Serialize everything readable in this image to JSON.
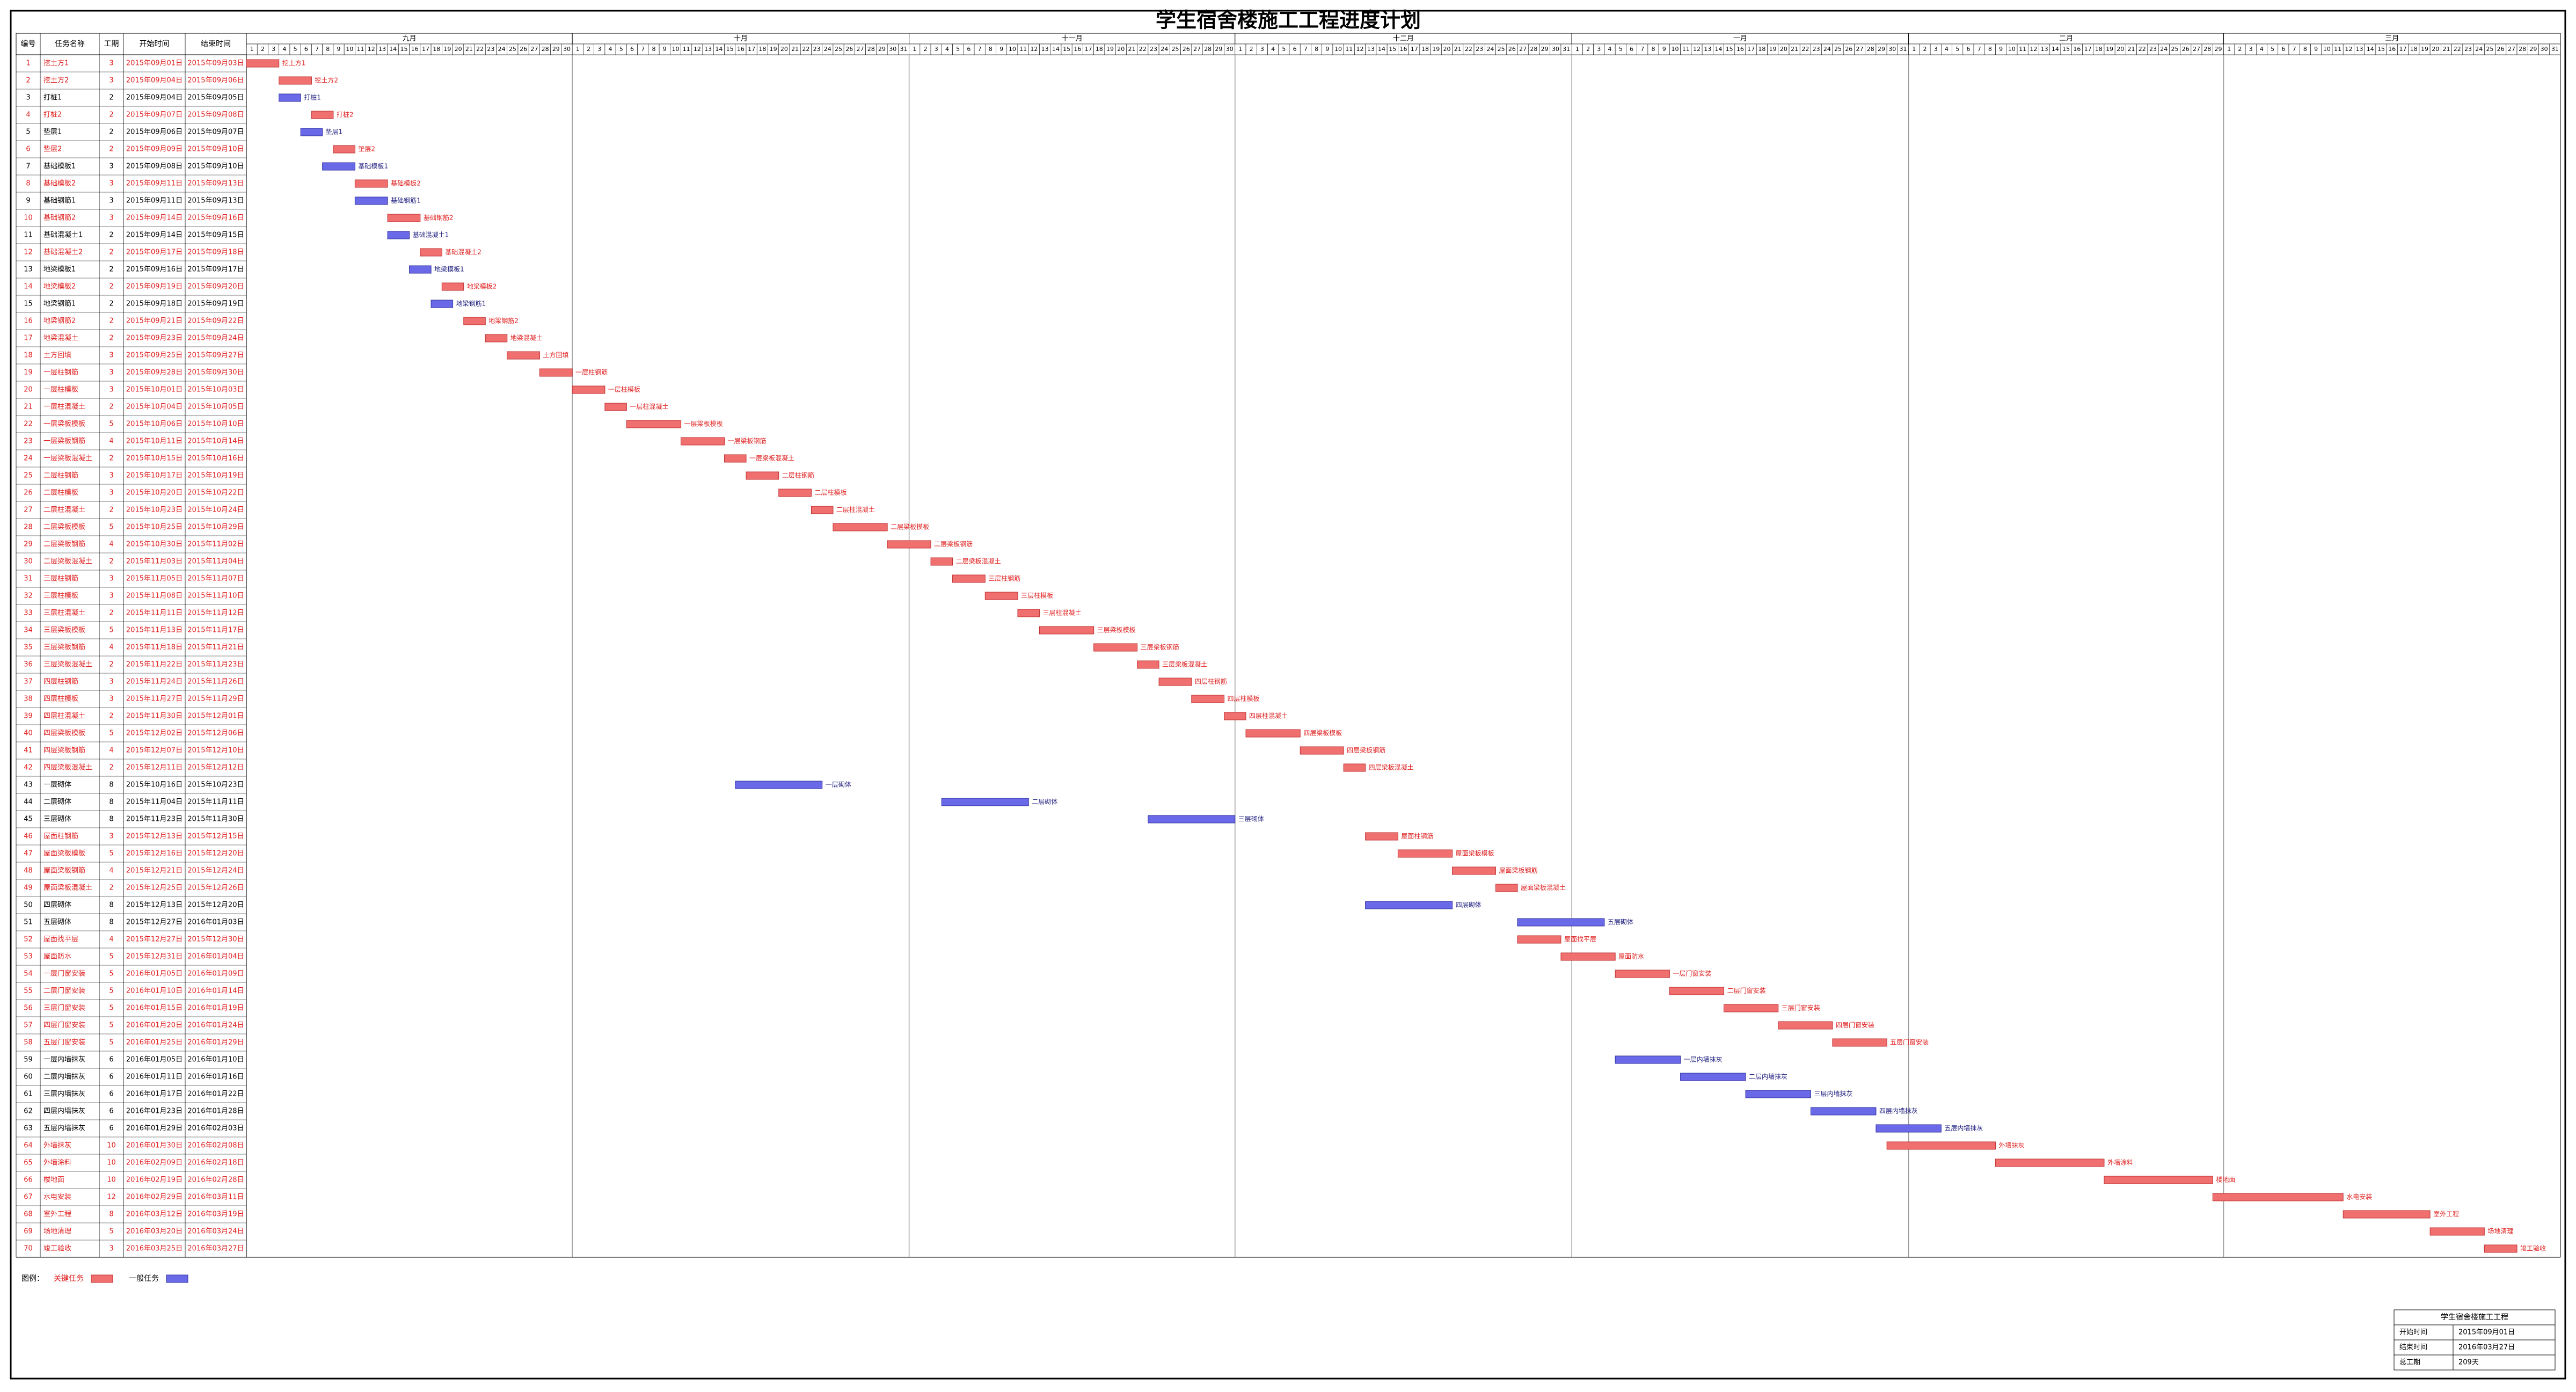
{
  "title": "学生宿舍楼施工工程进度计划",
  "table": {
    "headers": [
      "编号",
      "任务名称",
      "工期",
      "开始时间",
      "结束时间"
    ],
    "tasks": [
      [
        1,
        "挖土方1",
        3,
        "2015年09月01日",
        "2015年09月03日",
        true
      ],
      [
        2,
        "挖土方2",
        3,
        "2015年09月04日",
        "2015年09月06日",
        true
      ],
      [
        3,
        "打桩1",
        2,
        "2015年09月04日",
        "2015年09月05日",
        false
      ],
      [
        4,
        "打桩2",
        2,
        "2015年09月07日",
        "2015年09月08日",
        true
      ],
      [
        5,
        "垫层1",
        2,
        "2015年09月06日",
        "2015年09月07日",
        false
      ],
      [
        6,
        "垫层2",
        2,
        "2015年09月09日",
        "2015年09月10日",
        true
      ],
      [
        7,
        "基础模板1",
        3,
        "2015年09月08日",
        "2015年09月10日",
        false
      ],
      [
        8,
        "基础模板2",
        3,
        "2015年09月11日",
        "2015年09月13日",
        true
      ],
      [
        9,
        "基础钢筋1",
        3,
        "2015年09月11日",
        "2015年09月13日",
        false
      ],
      [
        10,
        "基础钢筋2",
        3,
        "2015年09月14日",
        "2015年09月16日",
        true
      ],
      [
        11,
        "基础混凝土1",
        2,
        "2015年09月14日",
        "2015年09月15日",
        false
      ],
      [
        12,
        "基础混凝土2",
        2,
        "2015年09月17日",
        "2015年09月18日",
        true
      ],
      [
        13,
        "地梁模板1",
        2,
        "2015年09月16日",
        "2015年09月17日",
        false
      ],
      [
        14,
        "地梁模板2",
        2,
        "2015年09月19日",
        "2015年09月20日",
        true
      ],
      [
        15,
        "地梁钢筋1",
        2,
        "2015年09月18日",
        "2015年09月19日",
        false
      ],
      [
        16,
        "地梁钢筋2",
        2,
        "2015年09月21日",
        "2015年09月22日",
        true
      ],
      [
        17,
        "地梁混凝土",
        2,
        "2015年09月23日",
        "2015年09月24日",
        true
      ],
      [
        18,
        "土方回填",
        3,
        "2015年09月25日",
        "2015年09月27日",
        true
      ],
      [
        19,
        "一层柱钢筋",
        3,
        "2015年09月28日",
        "2015年09月30日",
        true
      ],
      [
        20,
        "一层柱模板",
        3,
        "2015年10月01日",
        "2015年10月03日",
        true
      ],
      [
        21,
        "一层柱混凝土",
        2,
        "2015年10月04日",
        "2015年10月05日",
        true
      ],
      [
        22,
        "一层梁板模板",
        5,
        "2015年10月06日",
        "2015年10月10日",
        true
      ],
      [
        23,
        "一层梁板钢筋",
        4,
        "2015年10月11日",
        "2015年10月14日",
        true
      ],
      [
        24,
        "一层梁板混凝土",
        2,
        "2015年10月15日",
        "2015年10月16日",
        true
      ],
      [
        25,
        "二层柱钢筋",
        3,
        "2015年10月17日",
        "2015年10月19日",
        true
      ],
      [
        26,
        "二层柱模板",
        3,
        "2015年10月20日",
        "2015年10月22日",
        true
      ],
      [
        27,
        "二层柱混凝土",
        2,
        "2015年10月23日",
        "2015年10月24日",
        true
      ],
      [
        28,
        "二层梁板模板",
        5,
        "2015年10月25日",
        "2015年10月29日",
        true
      ],
      [
        29,
        "二层梁板钢筋",
        4,
        "2015年10月30日",
        "2015年11月02日",
        true
      ],
      [
        30,
        "二层梁板混凝土",
        2,
        "2015年11月03日",
        "2015年11月04日",
        true
      ],
      [
        31,
        "三层柱钢筋",
        3,
        "2015年11月05日",
        "2015年11月07日",
        true
      ],
      [
        32,
        "三层柱模板",
        3,
        "2015年11月08日",
        "2015年11月10日",
        true
      ],
      [
        33,
        "三层柱混凝土",
        2,
        "2015年11月11日",
        "2015年11月12日",
        true
      ],
      [
        34,
        "三层梁板模板",
        5,
        "2015年11月13日",
        "2015年11月17日",
        true
      ],
      [
        35,
        "三层梁板钢筋",
        4,
        "2015年11月18日",
        "2015年11月21日",
        true
      ],
      [
        36,
        "三层梁板混凝土",
        2,
        "2015年11月22日",
        "2015年11月23日",
        true
      ],
      [
        37,
        "四层柱钢筋",
        3,
        "2015年11月24日",
        "2015年11月26日",
        true
      ],
      [
        38,
        "四层柱模板",
        3,
        "2015年11月27日",
        "2015年11月29日",
        true
      ],
      [
        39,
        "四层柱混凝土",
        2,
        "2015年11月30日",
        "2015年12月01日",
        true
      ],
      [
        40,
        "四层梁板模板",
        5,
        "2015年12月02日",
        "2015年12月06日",
        true
      ],
      [
        41,
        "四层梁板钢筋",
        4,
        "2015年12月07日",
        "2015年12月10日",
        true
      ],
      [
        42,
        "四层梁板混凝土",
        2,
        "2015年12月11日",
        "2015年12月12日",
        true
      ],
      [
        43,
        "一层砌体",
        8,
        "2015年10月16日",
        "2015年10月23日",
        false
      ],
      [
        44,
        "二层砌体",
        8,
        "2015年11月04日",
        "2015年11月11日",
        false
      ],
      [
        45,
        "三层砌体",
        8,
        "2015年11月23日",
        "2015年11月30日",
        false
      ],
      [
        46,
        "屋面柱钢筋",
        3,
        "2015年12月13日",
        "2015年12月15日",
        true
      ],
      [
        47,
        "屋面梁板模板",
        5,
        "2015年12月16日",
        "2015年12月20日",
        true
      ],
      [
        48,
        "屋面梁板钢筋",
        4,
        "2015年12月21日",
        "2015年12月24日",
        true
      ],
      [
        49,
        "屋面梁板混凝土",
        2,
        "2015年12月25日",
        "2015年12月26日",
        true
      ],
      [
        50,
        "四层砌体",
        8,
        "2015年12月13日",
        "2015年12月20日",
        false
      ],
      [
        51,
        "五层砌体",
        8,
        "2015年12月27日",
        "2016年01月03日",
        false
      ],
      [
        52,
        "屋面找平层",
        4,
        "2015年12月27日",
        "2015年12月30日",
        true
      ],
      [
        53,
        "屋面防水",
        5,
        "2015年12月31日",
        "2016年01月04日",
        true
      ],
      [
        54,
        "一层门窗安装",
        5,
        "2016年01月05日",
        "2016年01月09日",
        true
      ],
      [
        55,
        "二层门窗安装",
        5,
        "2016年01月10日",
        "2016年01月14日",
        true
      ],
      [
        56,
        "三层门窗安装",
        5,
        "2016年01月15日",
        "2016年01月19日",
        true
      ],
      [
        57,
        "四层门窗安装",
        5,
        "2016年01月20日",
        "2016年01月24日",
        true
      ],
      [
        58,
        "五层门窗安装",
        5,
        "2016年01月25日",
        "2016年01月29日",
        true
      ],
      [
        59,
        "一层内墙抹灰",
        6,
        "2016年01月05日",
        "2016年01月10日",
        false
      ],
      [
        60,
        "二层内墙抹灰",
        6,
        "2016年01月11日",
        "2016年01月16日",
        false
      ],
      [
        61,
        "三层内墙抹灰",
        6,
        "2016年01月17日",
        "2016年01月22日",
        false
      ],
      [
        62,
        "四层内墙抹灰",
        6,
        "2016年01月23日",
        "2016年01月28日",
        false
      ],
      [
        63,
        "五层内墙抹灰",
        6,
        "2016年01月29日",
        "2016年02月03日",
        false
      ],
      [
        64,
        "外墙抹灰",
        10,
        "2016年01月30日",
        "2016年02月08日",
        true
      ],
      [
        65,
        "外墙涂料",
        10,
        "2016年02月09日",
        "2016年02月18日",
        true
      ],
      [
        66,
        "楼地面",
        10,
        "2016年02月19日",
        "2016年02月28日",
        true
      ],
      [
        67,
        "水电安装",
        12,
        "2016年02月29日",
        "2016年03月11日",
        true
      ],
      [
        68,
        "室外工程",
        8,
        "2016年03月12日",
        "2016年03月19日",
        true
      ],
      [
        69,
        "场地清理",
        5,
        "2016年03月20日",
        "2016年03月24日",
        true
      ],
      [
        70,
        "竣工验收",
        3,
        "2016年03月25日",
        "2016年03月27日",
        true
      ]
    ]
  },
  "timeline": {
    "months": [
      {
        "label": "九月",
        "days": [
          1,
          2,
          3,
          4,
          5,
          6,
          7,
          8,
          9,
          10,
          11,
          12,
          13,
          14,
          15,
          16,
          17,
          18,
          19,
          20,
          21,
          22,
          23,
          24,
          25,
          26,
          27,
          28,
          29,
          30
        ]
      },
      {
        "label": "十月",
        "days": [
          1,
          2,
          3,
          4,
          5,
          6,
          7,
          8,
          9,
          10,
          11,
          12,
          13,
          14,
          15,
          16,
          17,
          18,
          19,
          20,
          21,
          22,
          23,
          24,
          25,
          26,
          27,
          28,
          29,
          30,
          31
        ]
      },
      {
        "label": "十一月",
        "days": [
          1,
          2,
          3,
          4,
          5,
          6,
          7,
          8,
          9,
          10,
          11,
          12,
          13,
          14,
          15,
          16,
          17,
          18,
          19,
          20,
          21,
          22,
          23,
          24,
          25,
          26,
          27,
          28,
          29,
          30
        ]
      },
      {
        "label": "十二月",
        "days": [
          1,
          2,
          3,
          4,
          5,
          6,
          7,
          8,
          9,
          10,
          11,
          12,
          13,
          14,
          15,
          16,
          17,
          18,
          19,
          20,
          21,
          22,
          23,
          24,
          25,
          26,
          27,
          28,
          29,
          30,
          31
        ]
      },
      {
        "label": "一月",
        "days": [
          1,
          2,
          3,
          4,
          5,
          6,
          7,
          8,
          9,
          10,
          11,
          12,
          13,
          14,
          15,
          16,
          17,
          18,
          19,
          20,
          21,
          22,
          23,
          24,
          25,
          26,
          27,
          28,
          29,
          30,
          31
        ]
      },
      {
        "label": "二月",
        "days": [
          1,
          2,
          3,
          4,
          5,
          6,
          7,
          8,
          9,
          10,
          11,
          12,
          13,
          14,
          15,
          16,
          17,
          18,
          19,
          20,
          21,
          22,
          23,
          24,
          25,
          26,
          27,
          28,
          29
        ]
      },
      {
        "label": "三月",
        "days": [
          1,
          2,
          3,
          4,
          5,
          6,
          7,
          8,
          9,
          10,
          11,
          12,
          13,
          14,
          15,
          16,
          17,
          18,
          19,
          20,
          21,
          22,
          23,
          24,
          25,
          26,
          27,
          28,
          29,
          30,
          31
        ]
      }
    ]
  },
  "critical_color": "#f07070",
  "normal_color": "#6a6ae8",
  "legend": {
    "label": "图例：",
    "critical": "关键任务",
    "normal": "一般任务"
  },
  "info": {
    "title": "学生宿舍楼施工工程",
    "rows": [
      [
        "开始时间",
        "2015年09月01日"
      ],
      [
        "结束时间",
        "2016年03月27日"
      ],
      [
        "总工期",
        "209天"
      ]
    ]
  }
}
